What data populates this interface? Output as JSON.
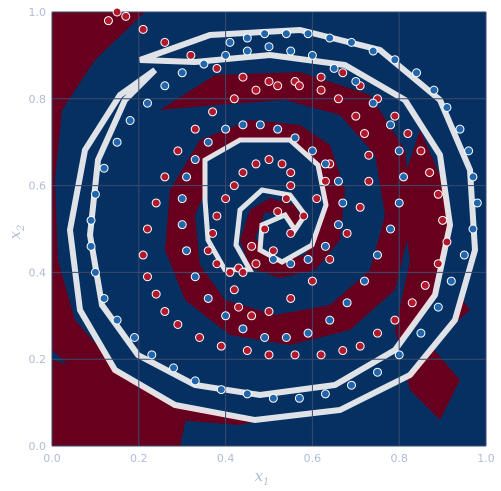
{
  "chart_data": {
    "type": "scatter",
    "title": "",
    "xlabel": "x",
    "xlabel_sub": "1",
    "ylabel": "x",
    "ylabel_sub": "2",
    "xlim": [
      0,
      1
    ],
    "ylim": [
      0,
      1
    ],
    "xticks": [
      "0.0",
      "0.2",
      "0.4",
      "0.6",
      "0.8",
      "1.0"
    ],
    "yticks": [
      "0.0",
      "0.2",
      "0.4",
      "0.6",
      "0.8",
      "1.0"
    ],
    "grid": true,
    "legend": "none",
    "background": "decision-boundary contour (two-class spiral)",
    "colors": {
      "class_red": "#b2182b",
      "class_blue": "#2166ac",
      "region_red": "#67001f",
      "region_blue": "#053061",
      "mid": "#f7f7f7",
      "grid": "#3e4a6b",
      "tick_text": "#b0bcd8"
    },
    "series": [
      {
        "color": "red",
        "x": [
          0.13,
          0.15,
          0.17,
          0.21,
          0.26,
          0.32,
          0.38,
          0.44,
          0.5,
          0.56,
          0.62,
          0.67,
          0.71,
          0.75,
          0.79,
          0.82,
          0.85,
          0.87,
          0.89,
          0.9,
          0.91,
          0.89,
          0.86,
          0.83,
          0.79,
          0.75,
          0.71,
          0.67,
          0.62,
          0.56,
          0.5,
          0.45,
          0.39,
          0.34,
          0.29,
          0.26,
          0.24,
          0.22,
          0.21,
          0.22,
          0.24,
          0.26,
          0.29,
          0.33,
          0.37,
          0.42,
          0.47,
          0.52,
          0.57,
          0.62,
          0.66,
          0.7,
          0.72,
          0.73,
          0.73,
          0.71,
          0.68,
          0.64,
          0.6,
          0.55,
          0.5,
          0.46,
          0.43,
          0.42,
          0.43,
          0.46,
          0.49,
          0.52,
          0.54,
          0.55,
          0.55,
          0.53,
          0.5,
          0.47,
          0.44,
          0.42,
          0.4,
          0.38,
          0.37,
          0.36,
          0.38,
          0.41,
          0.44,
          0.47,
          0.51,
          0.55,
          0.58,
          0.61,
          0.63,
          0.64
        ],
        "y": [
          0.98,
          1.0,
          0.99,
          0.96,
          0.93,
          0.9,
          0.87,
          0.85,
          0.84,
          0.84,
          0.85,
          0.86,
          0.83,
          0.8,
          0.76,
          0.72,
          0.68,
          0.63,
          0.58,
          0.52,
          0.47,
          0.42,
          0.37,
          0.33,
          0.29,
          0.26,
          0.23,
          0.22,
          0.21,
          0.21,
          0.21,
          0.22,
          0.23,
          0.25,
          0.28,
          0.31,
          0.35,
          0.39,
          0.44,
          0.5,
          0.56,
          0.62,
          0.68,
          0.73,
          0.77,
          0.8,
          0.82,
          0.83,
          0.83,
          0.82,
          0.8,
          0.76,
          0.72,
          0.67,
          0.61,
          0.55,
          0.49,
          0.43,
          0.38,
          0.34,
          0.31,
          0.3,
          0.32,
          0.36,
          0.41,
          0.46,
          0.5,
          0.54,
          0.57,
          0.6,
          0.63,
          0.65,
          0.66,
          0.65,
          0.63,
          0.6,
          0.57,
          0.53,
          0.49,
          0.45,
          0.42,
          0.4,
          0.4,
          0.42,
          0.45,
          0.49,
          0.53,
          0.57,
          0.61,
          0.65
        ]
      },
      {
        "color": "blue",
        "x": [
          0.41,
          0.45,
          0.49,
          0.54,
          0.59,
          0.64,
          0.69,
          0.74,
          0.79,
          0.84,
          0.88,
          0.91,
          0.94,
          0.96,
          0.97,
          0.98,
          0.97,
          0.95,
          0.92,
          0.89,
          0.85,
          0.8,
          0.75,
          0.69,
          0.63,
          0.57,
          0.51,
          0.45,
          0.39,
          0.33,
          0.28,
          0.23,
          0.19,
          0.15,
          0.12,
          0.1,
          0.09,
          0.09,
          0.1,
          0.12,
          0.15,
          0.18,
          0.22,
          0.26,
          0.3,
          0.35,
          0.4,
          0.45,
          0.5,
          0.55,
          0.6,
          0.65,
          0.7,
          0.74,
          0.78,
          0.8,
          0.81,
          0.8,
          0.78,
          0.75,
          0.72,
          0.68,
          0.64,
          0.59,
          0.54,
          0.49,
          0.44,
          0.4,
          0.36,
          0.33,
          0.31,
          0.3,
          0.3,
          0.31,
          0.33,
          0.36,
          0.4,
          0.44,
          0.48,
          0.52,
          0.56,
          0.6,
          0.63,
          0.66,
          0.67,
          0.66,
          0.63,
          0.59,
          0.55,
          0.51
        ],
        "y": [
          0.93,
          0.94,
          0.95,
          0.95,
          0.95,
          0.94,
          0.93,
          0.91,
          0.89,
          0.86,
          0.82,
          0.78,
          0.73,
          0.68,
          0.62,
          0.56,
          0.5,
          0.44,
          0.38,
          0.32,
          0.26,
          0.21,
          0.17,
          0.14,
          0.12,
          0.11,
          0.11,
          0.12,
          0.13,
          0.15,
          0.18,
          0.21,
          0.25,
          0.29,
          0.34,
          0.4,
          0.46,
          0.52,
          0.58,
          0.64,
          0.7,
          0.75,
          0.79,
          0.83,
          0.86,
          0.88,
          0.9,
          0.91,
          0.92,
          0.91,
          0.9,
          0.87,
          0.84,
          0.79,
          0.74,
          0.68,
          0.62,
          0.56,
          0.5,
          0.44,
          0.38,
          0.33,
          0.29,
          0.26,
          0.25,
          0.25,
          0.27,
          0.3,
          0.34,
          0.39,
          0.45,
          0.51,
          0.57,
          0.62,
          0.66,
          0.7,
          0.73,
          0.74,
          0.74,
          0.73,
          0.71,
          0.68,
          0.65,
          0.61,
          0.56,
          0.51,
          0.46,
          0.43,
          0.42,
          0.43
        ]
      }
    ]
  }
}
